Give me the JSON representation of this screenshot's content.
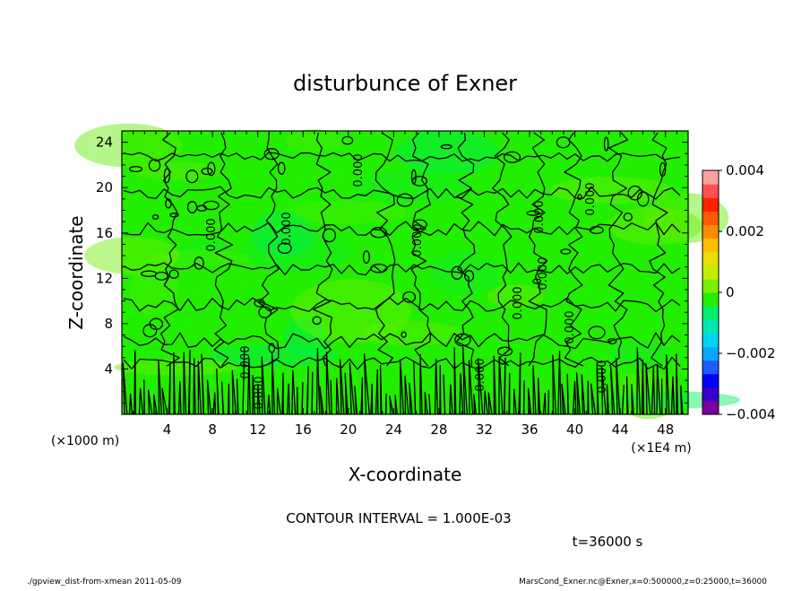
{
  "chart_data": {
    "type": "heatmap",
    "title": "disturbunce of Exner",
    "xlabel": "X-coordinate",
    "ylabel": "Z-coordinate",
    "x_unit_left": "(×1000 m)",
    "x_unit_right": "(×1E4 m)",
    "xlim": [
      0,
      50
    ],
    "ylim": [
      0,
      25
    ],
    "x_ticks": [
      4,
      8,
      12,
      16,
      20,
      24,
      28,
      32,
      36,
      40,
      44,
      48
    ],
    "y_ticks": [
      4,
      8,
      12,
      16,
      20,
      24
    ],
    "colorbar": {
      "range": [
        -0.004,
        0.004
      ],
      "tick_labels": [
        "0.004",
        "0.002",
        "0",
        "−0.002",
        "−0.004"
      ],
      "colors": [
        "#7a00a0",
        "#3a00c8",
        "#0000ff",
        "#1e5cff",
        "#0aa6ff",
        "#00d4f0",
        "#00e8b0",
        "#00ee70",
        "#22ee00",
        "#7cee00",
        "#c2ee00",
        "#e8e000",
        "#ffbf00",
        "#ff8c00",
        "#ff5a00",
        "#ff2000",
        "#ff5050",
        "#ffa0a0"
      ]
    },
    "contour_labels": [
      "0.000",
      "0.000",
      "0.000",
      "0.000",
      "0.000",
      "0.000",
      "0.000",
      "0.000",
      "0.000",
      "0.000",
      "0.000",
      "0.000",
      "0.000"
    ],
    "contour_interval_text": "CONTOUR INTERVAL = 1.000E-03",
    "time_text": "t=36000 s",
    "footer_left": "./gpview_dist-from-xmean  2011-05-09",
    "footer_right": "MarsCond_Exner.nc@Exner,x=0:500000,z=0:25000,t=36000"
  }
}
